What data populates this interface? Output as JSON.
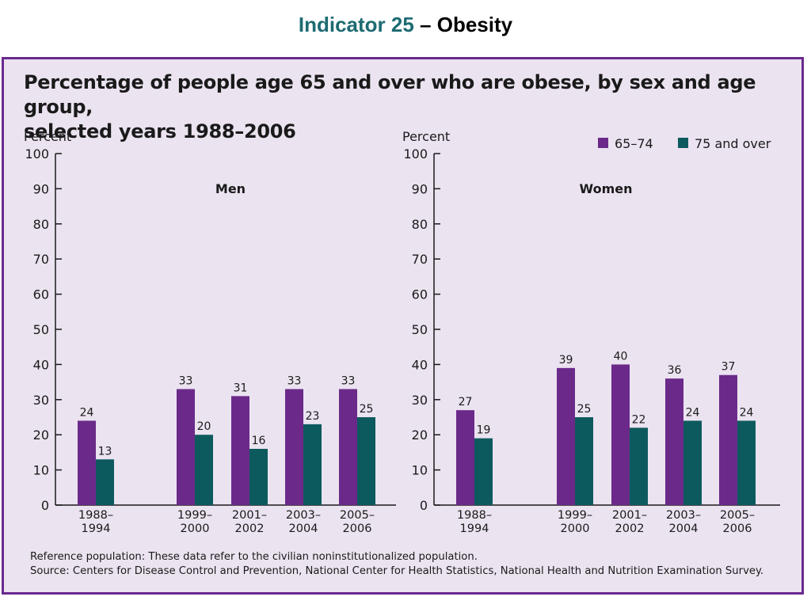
{
  "header": {
    "indicator": "Indicator 25",
    "rest": " – Obesity"
  },
  "chart_title_lines": [
    "Percentage of people age 65 and over who are obese, by sex and age group,",
    "selected years 1988–2006"
  ],
  "footnotes": {
    "reference": "Reference population: These data refer to the civilian noninstitutionalized population.",
    "source": "Source: Centers for Disease Control and Prevention, National Center for Health Statistics, National Health and Nutrition Examination Survey."
  },
  "colors": {
    "series_65_74": "#6b2a8a",
    "series_75_over": "#0d5a5e",
    "panel_bg": "#ebe3f0",
    "panel_border": "#6a2a8e"
  },
  "chart_data": [
    {
      "type": "bar",
      "title": "Men",
      "ylabel": "Percent",
      "ylim": [
        0,
        100
      ],
      "yticks": [
        0,
        10,
        20,
        30,
        40,
        50,
        60,
        70,
        80,
        90,
        100
      ],
      "categories": [
        [
          "1988–",
          "1994"
        ],
        [
          "1999–",
          "2000"
        ],
        [
          "2001–",
          "2002"
        ],
        [
          "2003–",
          "2004"
        ],
        [
          "2005–",
          "2006"
        ]
      ],
      "series": [
        {
          "name": "65–74",
          "values": [
            24,
            33,
            31,
            33,
            33
          ]
        },
        {
          "name": "75 and over",
          "values": [
            13,
            20,
            16,
            23,
            25
          ]
        }
      ]
    },
    {
      "type": "bar",
      "title": "Women",
      "ylabel": "Percent",
      "ylim": [
        0,
        100
      ],
      "yticks": [
        0,
        10,
        20,
        30,
        40,
        50,
        60,
        70,
        80,
        90,
        100
      ],
      "categories": [
        [
          "1988–",
          "1994"
        ],
        [
          "1999–",
          "2000"
        ],
        [
          "2001–",
          "2002"
        ],
        [
          "2003–",
          "2004"
        ],
        [
          "2005–",
          "2006"
        ]
      ],
      "series": [
        {
          "name": "65–74",
          "values": [
            27,
            39,
            40,
            36,
            37
          ]
        },
        {
          "name": "75 and over",
          "values": [
            19,
            25,
            22,
            24,
            24
          ]
        }
      ],
      "legend": "top-right"
    }
  ]
}
